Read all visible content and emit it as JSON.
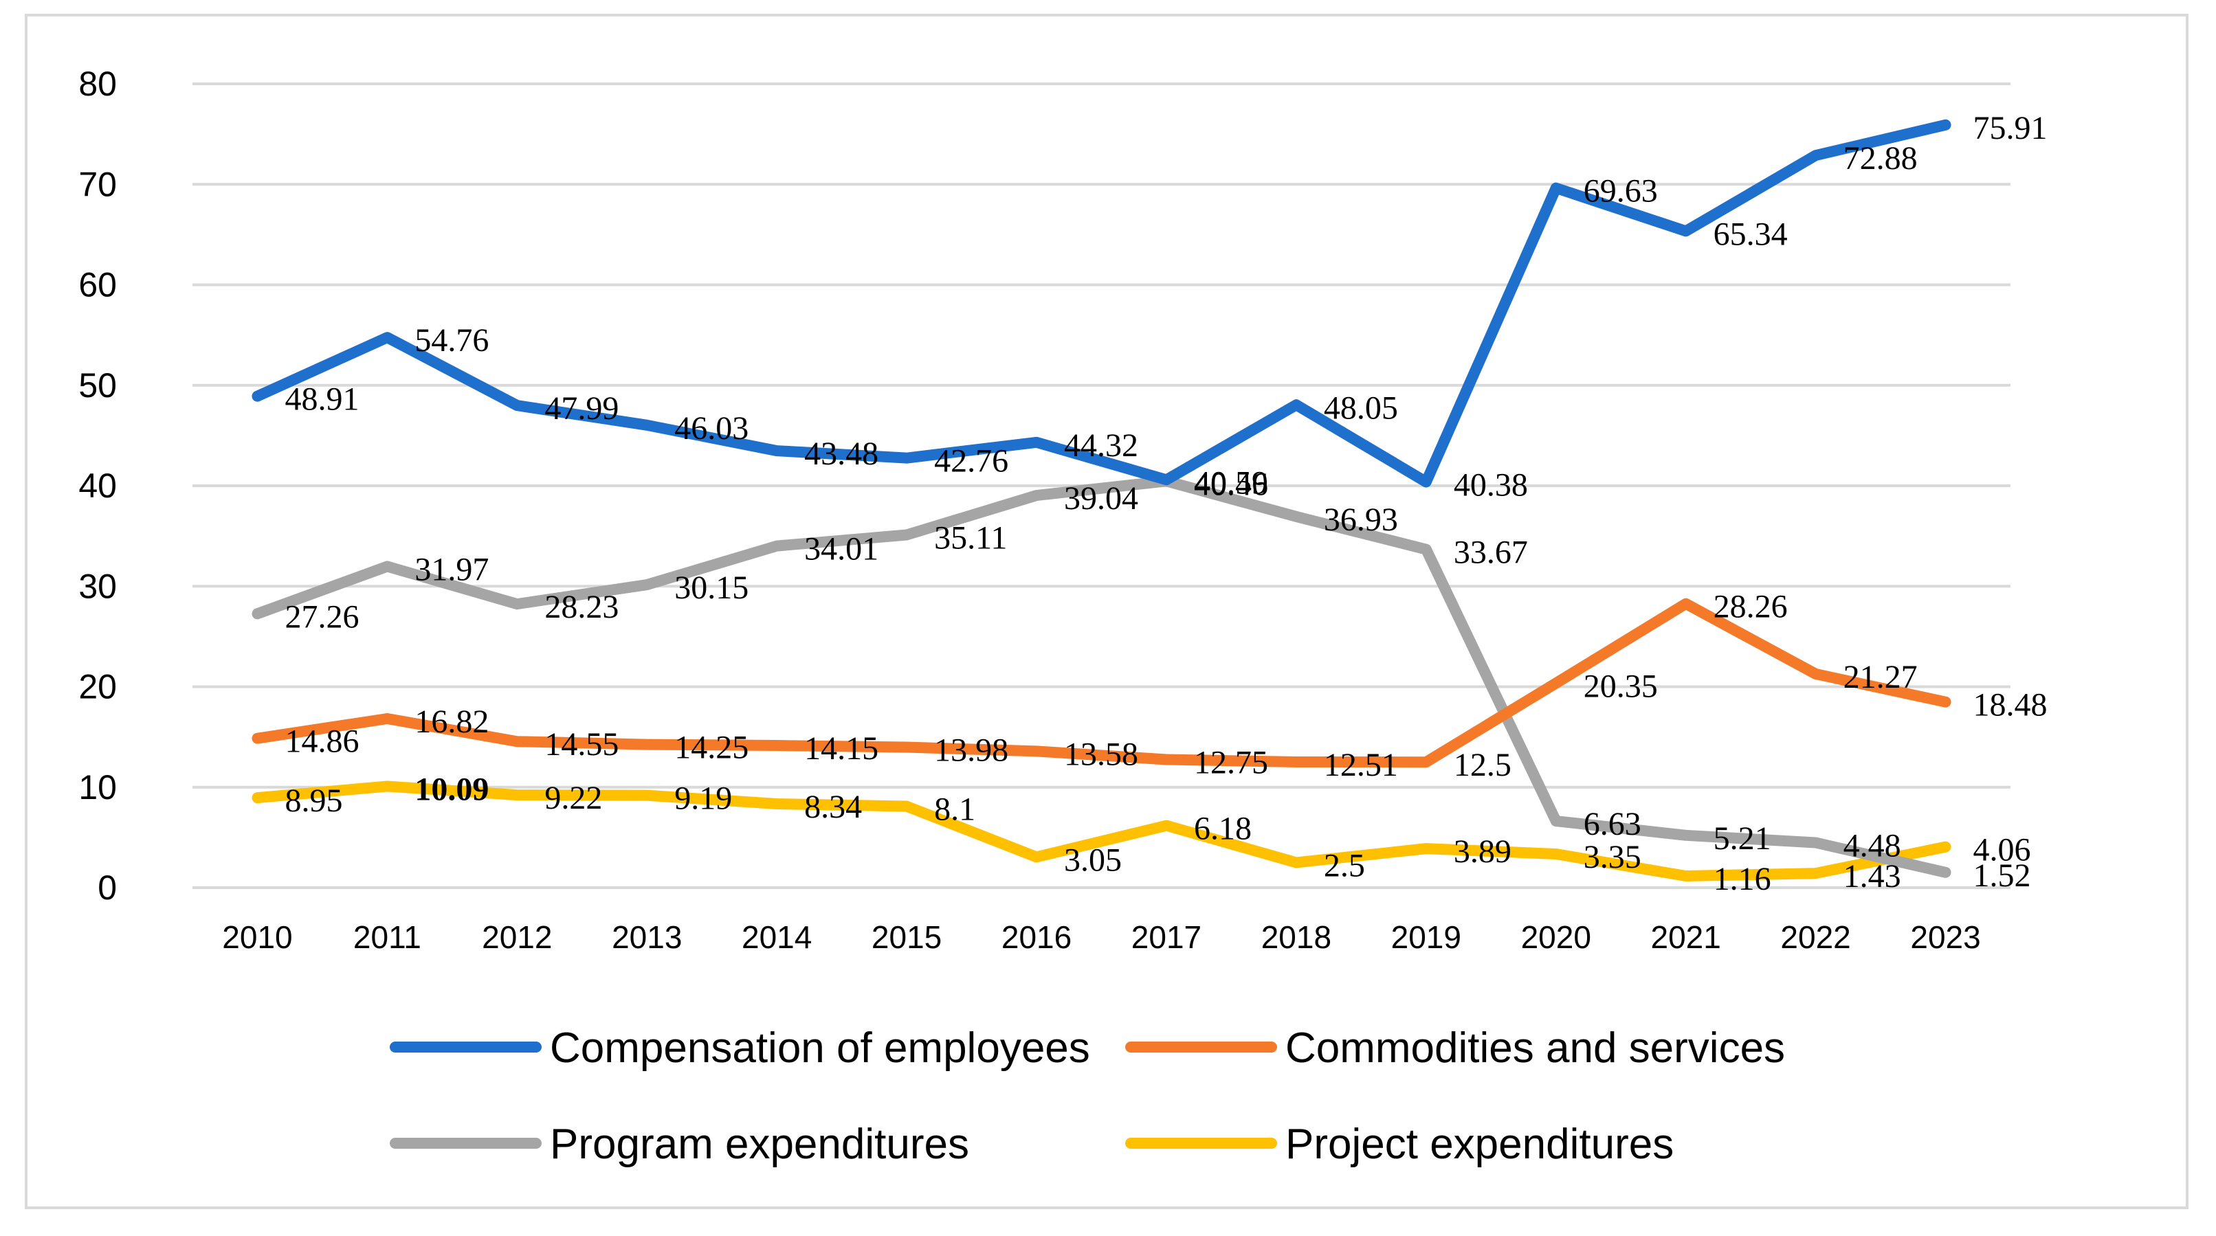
{
  "chart_data": {
    "type": "line",
    "title": "",
    "xlabel": "",
    "ylabel": "",
    "ylim": [
      0,
      80
    ],
    "yticks": [
      0,
      10,
      20,
      30,
      40,
      50,
      60,
      70,
      80
    ],
    "grid": true,
    "legend_position": "bottom",
    "categories": [
      "2010",
      "2011",
      "2012",
      "2013",
      "2014",
      "2015",
      "2016",
      "2017",
      "2018",
      "2019",
      "2020",
      "2021",
      "2022",
      "2023"
    ],
    "series": [
      {
        "name": "Compensation of employees",
        "color": "#1f6fcc",
        "values": [
          48.91,
          54.76,
          47.99,
          46.03,
          43.48,
          42.76,
          44.32,
          40.59,
          48.05,
          40.38,
          69.63,
          65.34,
          72.88,
          75.91
        ],
        "labels": [
          "48.91",
          "54.76",
          "47.99",
          "46.03",
          "43.48",
          "42.76",
          "44.32",
          "40.59",
          "48.05",
          "40.38",
          "69.63",
          "65.34",
          "72.88",
          "75.91"
        ]
      },
      {
        "name": "Commodities and services",
        "color": "#f47a2a",
        "values": [
          14.86,
          16.82,
          14.55,
          14.25,
          14.15,
          13.98,
          13.58,
          12.75,
          12.51,
          12.5,
          20.35,
          28.26,
          21.27,
          18.48
        ],
        "labels": [
          "14.86",
          "16.82",
          "14.55",
          "14.25",
          "14.15",
          "13.98",
          "13.58",
          "12.75",
          "12.51",
          "12.5",
          "20.35",
          "28.26",
          "21.27",
          "18.48"
        ]
      },
      {
        "name": "Program expenditures",
        "color": "#a5a5a5",
        "values": [
          27.26,
          31.97,
          28.23,
          30.15,
          34.01,
          35.11,
          39.04,
          40.46,
          36.93,
          33.67,
          6.63,
          5.21,
          4.48,
          1.52
        ],
        "labels": [
          "27.26",
          "31.97",
          "28.23",
          "30.15",
          "34.01",
          "35.11",
          "39.04",
          "40.46",
          "36.93",
          "33.67",
          "6.63",
          "5.21",
          "4.48",
          "1.52"
        ]
      },
      {
        "name": "Project expenditures",
        "color": "#ffc000",
        "values": [
          8.95,
          10.09,
          9.22,
          9.19,
          8.34,
          8.1,
          3.05,
          6.18,
          2.5,
          3.89,
          3.35,
          1.16,
          1.43,
          4.06
        ],
        "labels": [
          "8.95",
          "10.09",
          "9.22",
          "9.19",
          "8.34",
          "8.1",
          "3.05",
          "6.18",
          "2.5",
          "3.89",
          "3.35",
          "1.16",
          "1.43",
          "4.06"
        ]
      }
    ]
  }
}
